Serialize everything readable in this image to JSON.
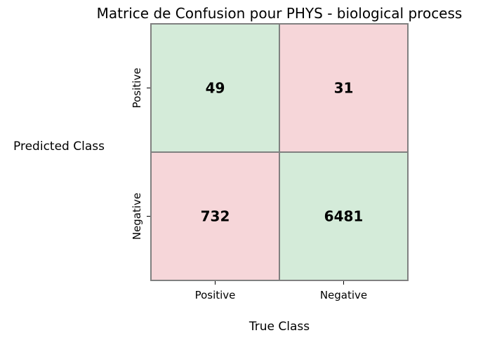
{
  "chart_data": {
    "type": "heatmap",
    "title": "Matrice de Confusion pour PHYS - biological process",
    "xlabel": "True Class",
    "ylabel": "Predicted Class",
    "x_categories": [
      "Positive",
      "Negative"
    ],
    "y_categories": [
      "Positive",
      "Negative"
    ],
    "values": [
      [
        49,
        31
      ],
      [
        732,
        6481
      ]
    ],
    "cell_colors": [
      [
        "#d4ebd9",
        "#f6d6d9"
      ],
      [
        "#f6d6d9",
        "#d4ebd9"
      ]
    ],
    "grid_color": "#808080",
    "text_color": "#000000"
  }
}
